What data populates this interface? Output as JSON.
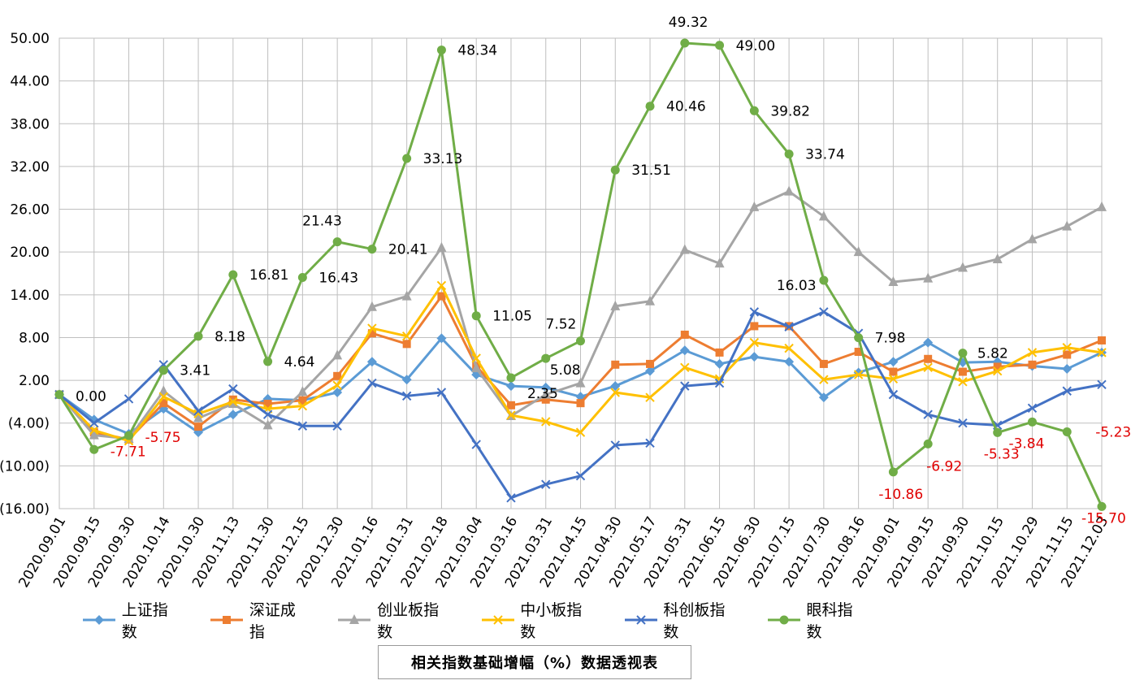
{
  "chart_data": {
    "type": "line",
    "title": "相关指数基础增幅（%）数据透视表",
    "categories": [
      "2020.09.01",
      "2020.09.15",
      "2020.09.30",
      "2020.10.14",
      "2020.10.30",
      "2020.11.13",
      "2020.11.30",
      "2020.12.15",
      "2020.12.30",
      "2021.01.16",
      "2021.01.31",
      "2021.02.18",
      "2021.03.04",
      "2021.03.16",
      "2021.03.31",
      "2021.04.15",
      "2021.04.30",
      "2021.05.17",
      "2021.05.31",
      "2021.06.15",
      "2021.06.30",
      "2021.07.15",
      "2021.07.30",
      "2021.08.16",
      "2021.09.01",
      "2021.09.15",
      "2021.09.30",
      "2021.10.15",
      "2021.10.29",
      "2021.11.15",
      "2021.12.03"
    ],
    "ylim": [
      -16,
      50
    ],
    "yticks": [
      "50.00",
      "44.00",
      "38.00",
      "32.00",
      "26.00",
      "20.00",
      "14.00",
      "8.00",
      "2.00",
      "(4.00)",
      "(10.00)",
      "(16.00)"
    ],
    "ytick_values": [
      50,
      44,
      38,
      32,
      26,
      20,
      14,
      8,
      2,
      -4,
      -10,
      -16
    ],
    "grid": true,
    "legend_position": "bottom",
    "series": [
      {
        "name": "上证指数",
        "color": "#5b9bd5",
        "marker": "diamond",
        "values": [
          0,
          -3.5,
          -5.5,
          -2,
          -5.3,
          -2.8,
          -0.6,
          -0.8,
          0.3,
          4.6,
          2.1,
          7.9,
          2.8,
          1.2,
          1.0,
          -0.3,
          1.2,
          3.3,
          6.2,
          4.3,
          5.3,
          4.6,
          -0.4,
          3.1,
          4.6,
          7.3,
          4.5,
          4.6,
          4.0,
          3.6,
          5.9
        ]
      },
      {
        "name": "深证成指",
        "color": "#ed7d31",
        "marker": "square",
        "values": [
          0,
          -5.3,
          -6.3,
          -1.2,
          -4.5,
          -0.7,
          -1.3,
          -0.8,
          2.6,
          8.6,
          7.1,
          13.8,
          4.0,
          -1.5,
          -0.7,
          -1.2,
          4.2,
          4.3,
          8.4,
          5.9,
          9.6,
          9.6,
          4.3,
          6.0,
          3.2,
          5.0,
          3.2,
          3.9,
          4.2,
          5.6,
          7.6
        ]
      },
      {
        "name": "创业板指数",
        "color": "#a5a5a5",
        "marker": "triangle",
        "values": [
          0,
          -5.7,
          -6.2,
          0.5,
          -3.3,
          -1.3,
          -4.3,
          0.4,
          5.5,
          12.3,
          13.8,
          20.6,
          3.7,
          -3.0,
          0,
          1.6,
          12.4,
          13.1,
          20.3,
          18.4,
          26.3,
          28.5,
          25.0,
          20.0,
          15.8,
          16.3,
          17.8,
          19.0,
          21.8,
          23.6,
          26.3
        ]
      },
      {
        "name": "中小板指数",
        "color": "#ffc000",
        "marker": "x",
        "values": [
          0,
          -5.0,
          -6.5,
          -0.3,
          -2.7,
          -1.0,
          -2.0,
          -1.6,
          1.3,
          9.3,
          8.2,
          15.3,
          5.1,
          -2.9,
          -3.8,
          -5.3,
          0.3,
          -0.4,
          3.8,
          2.2,
          7.3,
          6.5,
          2.1,
          2.8,
          2.2,
          3.8,
          1.8,
          3.3,
          5.9,
          6.6,
          5.9
        ]
      },
      {
        "name": "科创板指数",
        "color": "#4472c4",
        "marker": "x",
        "values": [
          0,
          -4.0,
          -0.6,
          4.2,
          -2.3,
          0.8,
          -2.8,
          -4.4,
          -4.4,
          1.6,
          -0.2,
          0.3,
          -7.0,
          -14.5,
          -12.6,
          -11.4,
          -7.1,
          -6.8,
          1.2,
          1.6,
          11.6,
          9.5,
          11.6,
          8.6,
          0,
          -2.8,
          -4.0,
          -4.3,
          -1.9,
          0.5,
          1.4
        ]
      },
      {
        "name": "眼科指数",
        "color": "#70ad47",
        "marker": "circle",
        "values": [
          0,
          -7.71,
          -5.75,
          3.41,
          8.18,
          16.81,
          4.64,
          16.43,
          21.43,
          20.41,
          33.13,
          48.34,
          11.05,
          2.35,
          5.08,
          7.52,
          31.51,
          40.46,
          49.32,
          49.0,
          39.82,
          33.74,
          16.03,
          7.98,
          -10.86,
          -6.92,
          5.82,
          -5.33,
          -3.84,
          -5.23,
          -15.7
        ],
        "labels": [
          "0.00",
          "-7.71",
          "-5.75",
          "3.41",
          "8.18",
          "16.81",
          "4.64",
          "16.43",
          "21.43",
          "20.41",
          "33.13",
          "48.34",
          "11.05",
          "2.35",
          "5.08",
          "7.52",
          "31.51",
          "40.46",
          "49.32",
          "49.00",
          "39.82",
          "33.74",
          "16.03",
          "7.98",
          "-10.86",
          "-6.92",
          "5.82",
          "-5.33",
          "-3.84",
          "-5.23",
          "-15.70"
        ]
      }
    ]
  },
  "colors": {
    "negative_label": "#e00000",
    "positive_label": "#000000",
    "grid": "#bfbfbf"
  }
}
